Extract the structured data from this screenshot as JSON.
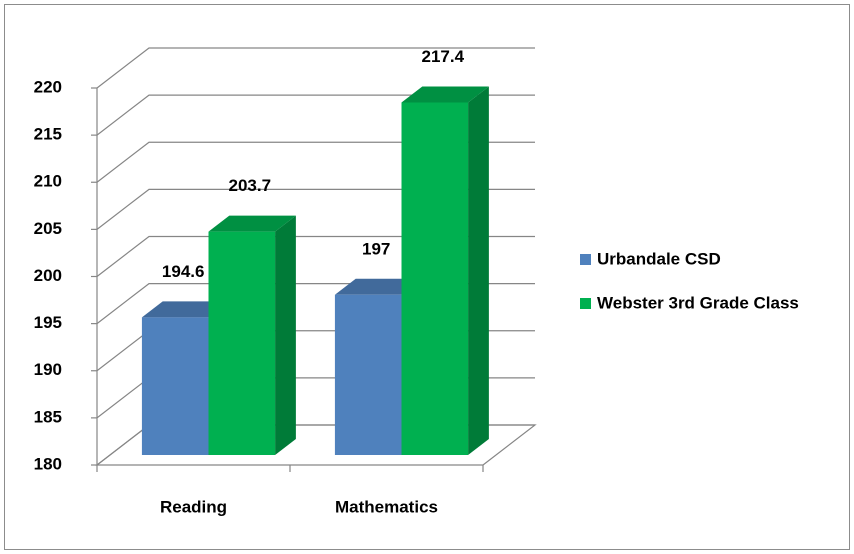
{
  "chart_data": {
    "type": "bar3d",
    "categories": [
      "Reading",
      "Mathematics"
    ],
    "series": [
      {
        "name": "Urbandale CSD",
        "color": "#4f81bd",
        "values": [
          194.6,
          197
        ]
      },
      {
        "name": "Webster 3rd Grade Class",
        "color": "#00b050",
        "values": [
          203.7,
          217.4
        ]
      }
    ],
    "ylim": [
      180,
      220
    ],
    "yticks": [
      180,
      185,
      190,
      195,
      200,
      205,
      210,
      215,
      220
    ],
    "grid": true,
    "legend": "right"
  }
}
